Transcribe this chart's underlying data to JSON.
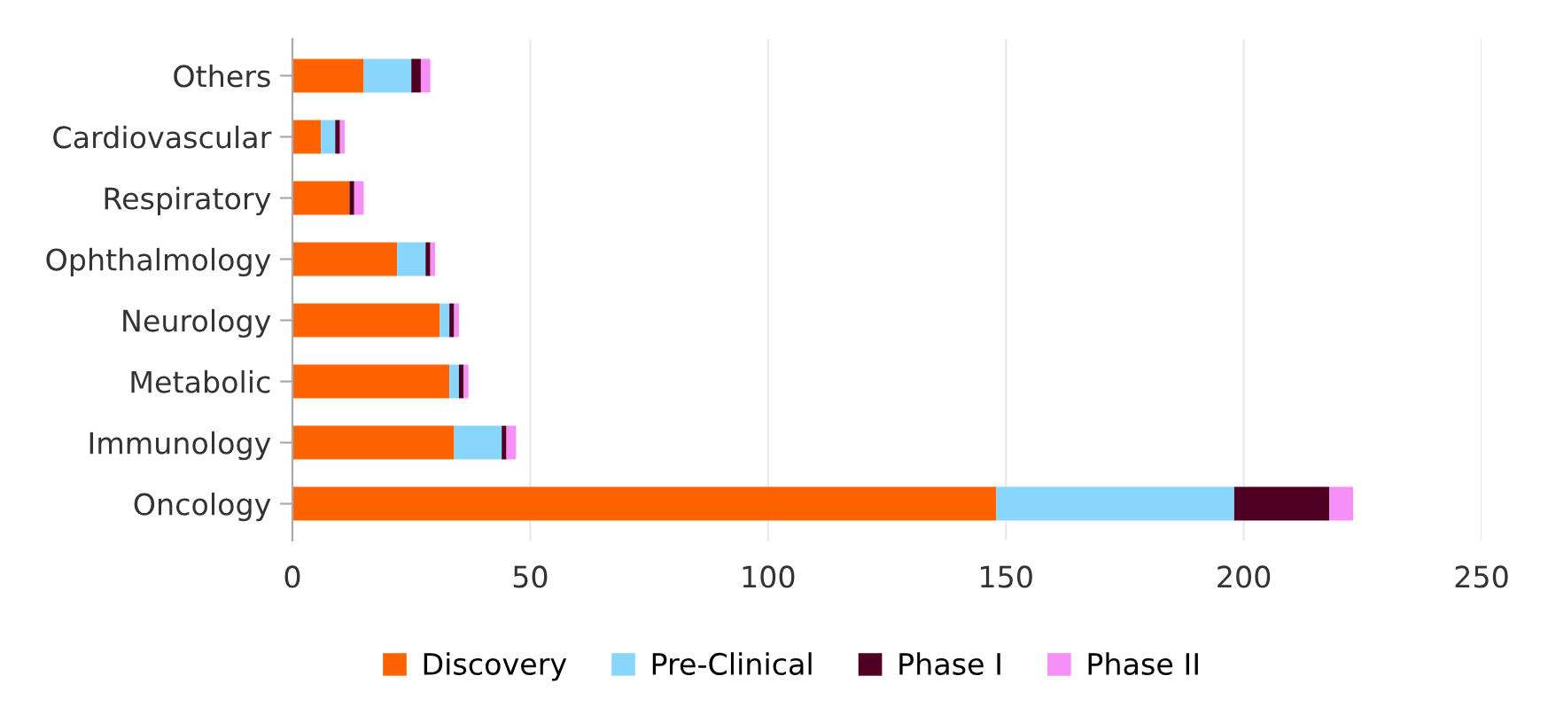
{
  "chart_data": {
    "type": "bar",
    "orientation": "horizontal",
    "stacked": true,
    "categories": [
      "Others",
      "Cardiovascular",
      "Respiratory",
      "Ophthalmology",
      "Neurology",
      "Metabolic",
      "Immunology",
      "Oncology"
    ],
    "series": [
      {
        "name": "Discovery",
        "color": "#ff6200",
        "values": [
          15,
          6,
          12,
          22,
          31,
          33,
          34,
          148
        ]
      },
      {
        "name": "Pre-Clinical",
        "color": "#89d6fd",
        "values": [
          10,
          3,
          0,
          6,
          2,
          2,
          10,
          50
        ]
      },
      {
        "name": "Phase I",
        "color": "#4f0022",
        "values": [
          2,
          1,
          1,
          1,
          1,
          1,
          1,
          20
        ]
      },
      {
        "name": "Phase II",
        "color": "#f68ff7",
        "values": [
          2,
          1,
          2,
          1,
          1,
          1,
          2,
          5
        ]
      }
    ],
    "xlim": [
      0,
      250
    ],
    "xticks": [
      0,
      50,
      100,
      150,
      200,
      250
    ],
    "grid": "x",
    "legend": "bottom"
  }
}
